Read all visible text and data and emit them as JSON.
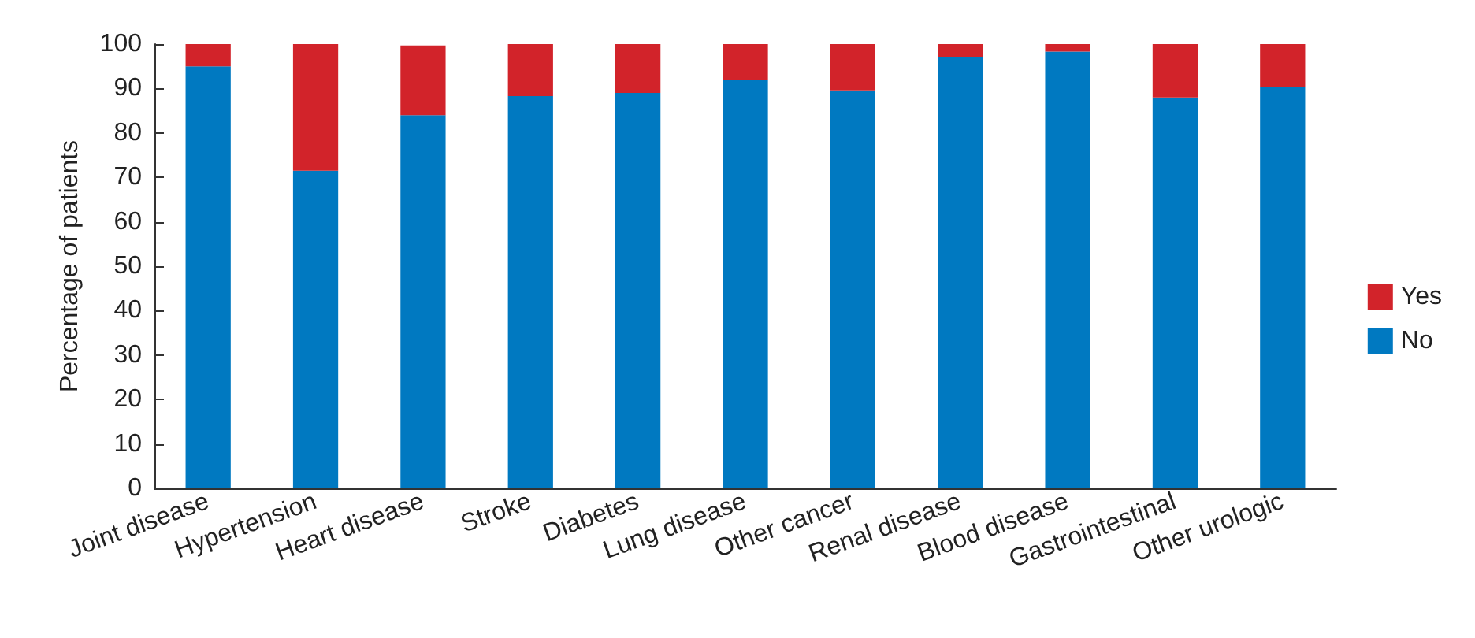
{
  "chart_data": {
    "type": "bar",
    "stacked": true,
    "ylabel": "Percentage of patients",
    "categories": [
      "Joint disease",
      "Hypertension",
      "Heart disease",
      "Stroke",
      "Diabetes",
      "Lung disease",
      "Other cancer",
      "Renal disease",
      "Blood disease",
      "Gastrointestinal",
      "Other urologic"
    ],
    "series": [
      {
        "name": "No",
        "color": "#0079c1",
        "values": [
          95,
          71.5,
          84,
          88.3,
          89,
          92,
          89.6,
          97,
          98.3,
          88,
          90.3
        ]
      },
      {
        "name": "Yes",
        "color": "#d2232a",
        "values": [
          5,
          28.5,
          15.7,
          11.7,
          11,
          8,
          10.4,
          3,
          1.7,
          12,
          9.7
        ]
      }
    ],
    "ylim": [
      0,
      100
    ],
    "yticks": [
      0,
      10,
      20,
      30,
      40,
      50,
      60,
      70,
      80,
      90,
      100
    ],
    "grid": false,
    "legend": "right"
  }
}
